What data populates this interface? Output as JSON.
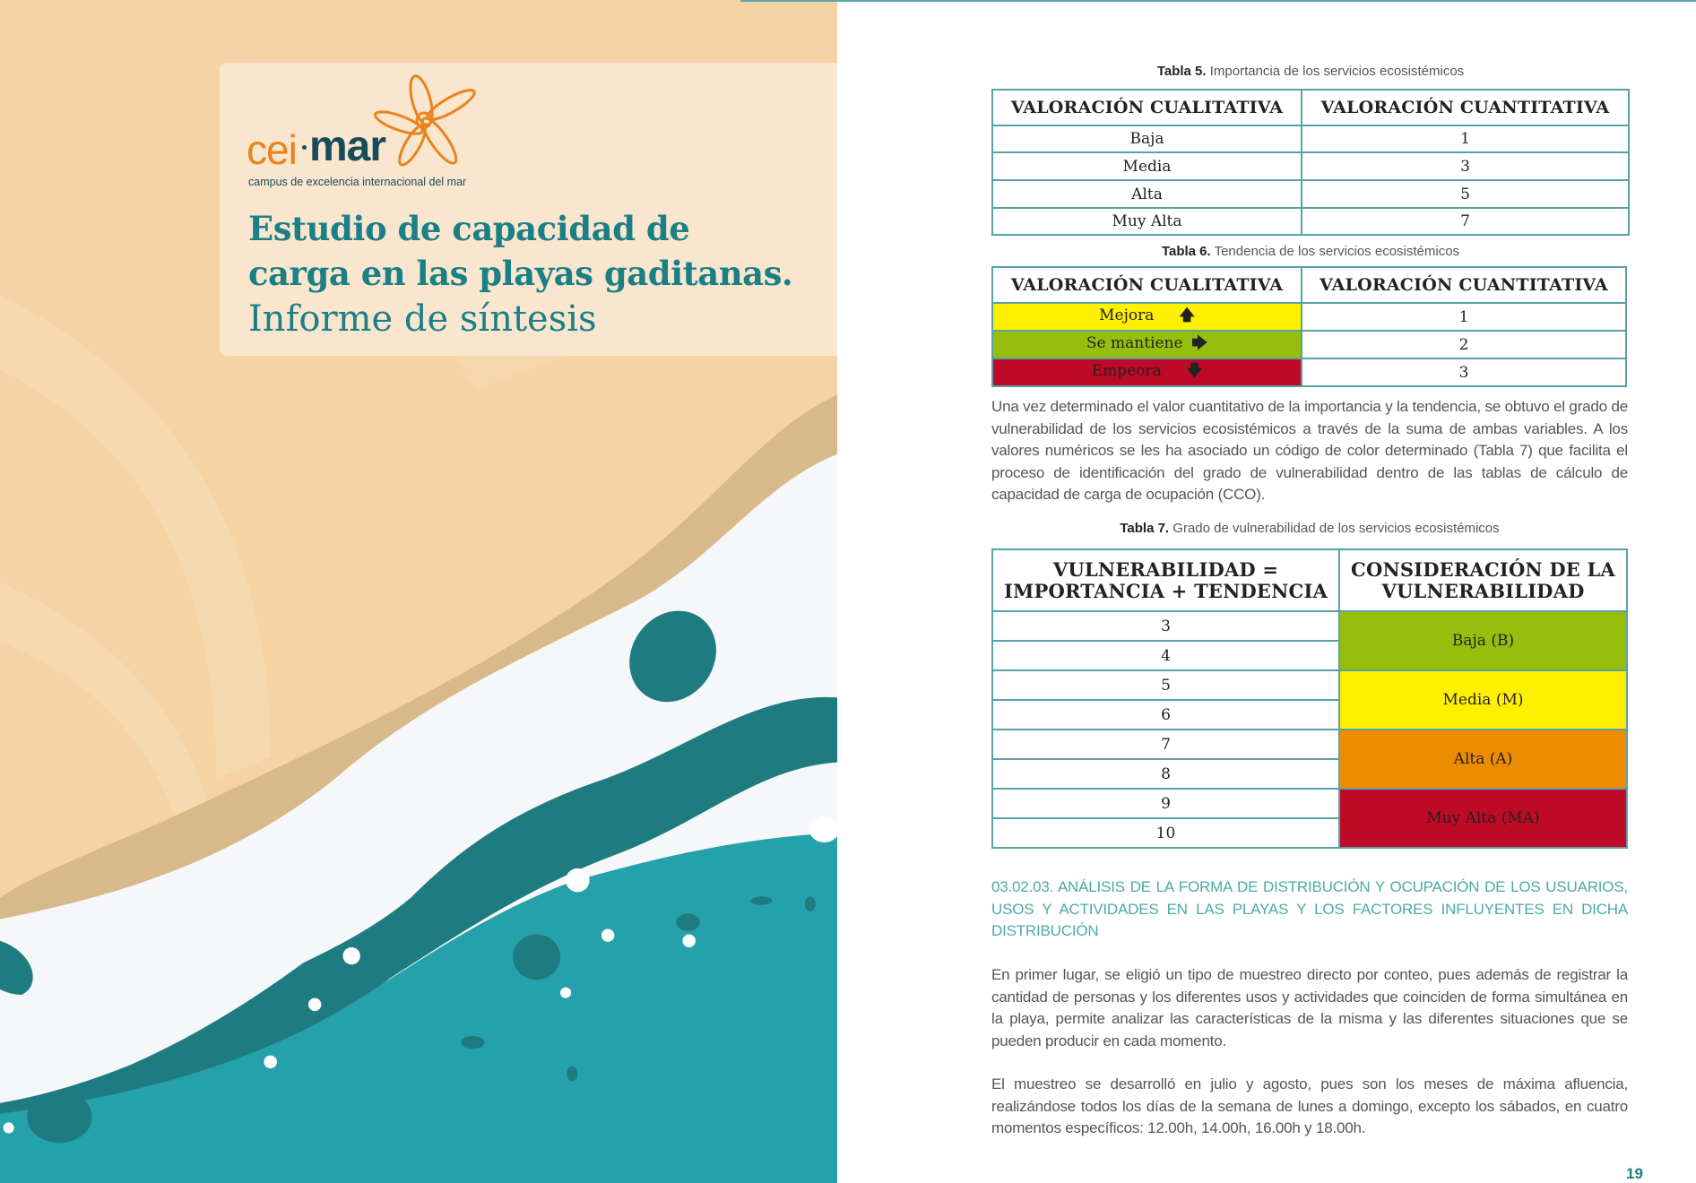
{
  "cover": {
    "logo": {
      "brand_left": "cei",
      "brand_right": "mar",
      "subtitle": "campus de excelencia internacional del mar",
      "colors": {
        "orange": "#e8841a",
        "navy": "#174c5a"
      }
    },
    "title_line1": "Estudio de capacidad de",
    "title_line2": "carga en las playas gaditanas.",
    "subtitle": "Informe de síntesis",
    "colors": {
      "sand": "#f5d3a4",
      "dark_sand": "#d8b98a",
      "teal_dark": "#1e7c81",
      "teal_light": "#25a1ab",
      "title": "#1b8085"
    }
  },
  "table5": {
    "caption_label": "Tabla 5.",
    "caption_text": "Importancia de los servicios ecosistémicos",
    "headers": [
      "VALORACIÓN CUALITATIVA",
      "VALORACIÓN CUANTITATIVA"
    ],
    "rows": [
      [
        "Baja",
        "1"
      ],
      [
        "Media",
        "3"
      ],
      [
        "Alta",
        "5"
      ],
      [
        "Muy Alta",
        "7"
      ]
    ]
  },
  "table6": {
    "caption_label": "Tabla 6.",
    "caption_text": "Tendencia de los servicios ecosistémicos",
    "headers": [
      "VALORACIÓN CUALITATIVA",
      "VALORACIÓN CUANTITATIVA"
    ],
    "rows": [
      {
        "label": "Mejora",
        "icon": "arrow-up-icon",
        "arrow": "🡅",
        "value": "1",
        "color": "#fff000"
      },
      {
        "label": "Se mantiene",
        "icon": "arrow-right-icon",
        "arrow": "🡆",
        "value": "2",
        "color": "#96bf0d"
      },
      {
        "label": "Empeora",
        "icon": "arrow-down-icon",
        "arrow": "🡇",
        "value": "3",
        "color": "#be0a26"
      }
    ]
  },
  "paragraph1": "Una vez determinado el valor cuantitativo de la importancia y la tendencia, se obtuvo el grado de vulnerabilidad de los servicios ecosistémicos a través de la suma de ambas variables. A los valores numéricos se les ha asociado un código de color determinado (Tabla 7) que facilita el proceso de identificación del grado de vulnerabilidad dentro de las tablas de cálculo de capacidad de carga de ocupación (CCO).",
  "table7": {
    "caption_label": "Tabla 7.",
    "caption_text": "Grado de vulnerabilidad de los servicios ecosistémicos",
    "header_left_1": "VULNERABILIDAD =",
    "header_left_2": "IMPORTANCIA + TENDENCIA",
    "header_right_1": "CONSIDERACIÓN DE LA",
    "header_right_2": "VULNERABILIDAD",
    "values": [
      "3",
      "4",
      "5",
      "6",
      "7",
      "8",
      "9",
      "10"
    ],
    "levels": [
      {
        "label": "Baja (B)",
        "color": "#96bf0d"
      },
      {
        "label": "Media (M)",
        "color": "#fff000"
      },
      {
        "label": "Alta (A)",
        "color": "#ee8c00"
      },
      {
        "label": "Muy Alta (MA)",
        "color": "#be0a26"
      }
    ]
  },
  "section_heading": "03.02.03. ANÁLISIS DE LA FORMA DE DISTRIBUCIÓN Y OCUPACIÓN DE LOS USUARIOS, USOS Y ACTIVIDADES EN LAS PLAYAS Y LOS FACTORES INFLUYENTES EN DICHA DISTRIBUCIÓN",
  "paragraph2": "En primer lugar, se eligió un tipo de muestreo directo por conteo, pues además de registrar la cantidad de personas y los diferentes usos y actividades que coinciden de forma simultánea en la playa, permite analizar las características de la misma y las diferentes situaciones que se pueden producir en cada momento.",
  "paragraph3": "El muestreo se desarrolló en julio y agosto, pues son los meses de máxima afluencia, realizándose todos los días de la semana de lunes a domingo, excepto los sábados, en cuatro momentos específicos: 12.00h, 14.00h, 16.00h y 18.00h.",
  "page_number": "19"
}
